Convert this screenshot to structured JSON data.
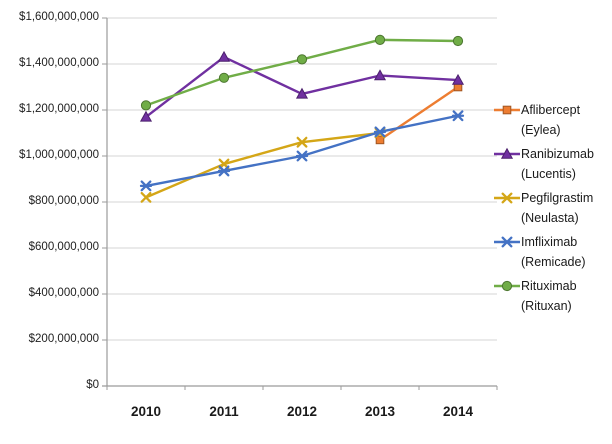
{
  "chart_data": {
    "type": "line",
    "title": "",
    "x_categories": [
      "2010",
      "2011",
      "2012",
      "2013",
      "2014"
    ],
    "y_ticks": [
      "$0",
      "$200,000,000",
      "$400,000,000",
      "$600,000,000",
      "$800,000,000",
      "$1,000,000,000",
      "$1,200,000,000",
      "$1,400,000,000",
      "$1,600,000,000"
    ],
    "ylim": [
      0,
      1600000000
    ],
    "y_tick_step": 200000000,
    "grid": true,
    "legend_position": "right",
    "axis_color": "#9b9b9b",
    "gridline_color": "#d6d6d6",
    "series": [
      {
        "name": "Aflibercept (Eylea)",
        "legend_lines": [
          "Aflibercept",
          "(Eylea)"
        ],
        "color": "#ED7D31",
        "marker": "square",
        "values": [
          null,
          null,
          null,
          1070000000,
          1300000000
        ]
      },
      {
        "name": "Ranibizumab (Lucentis)",
        "legend_lines": [
          "Ranibizumab",
          "(Lucentis)"
        ],
        "color": "#7030A0",
        "marker": "triangle",
        "values": [
          1170000000,
          1430000000,
          1270000000,
          1350000000,
          1330000000
        ]
      },
      {
        "name": "Pegfilgrastim (Neulasta)",
        "legend_lines": [
          "Pegfilgrastim",
          "(Neulasta)"
        ],
        "color": "#D4A617",
        "marker": "x",
        "values": [
          820000000,
          965000000,
          1060000000,
          1100000000,
          null
        ]
      },
      {
        "name": "Imfliximab (Remicade)",
        "legend_lines": [
          "Imfliximab",
          "(Remicade)"
        ],
        "color": "#4472C4",
        "marker": "star",
        "values": [
          870000000,
          935000000,
          1000000000,
          1105000000,
          1175000000
        ]
      },
      {
        "name": "Rituximab (Rituxan)",
        "legend_lines": [
          "Rituximab",
          "(Rituxan)"
        ],
        "color": "#70AD47",
        "marker": "circle",
        "values": [
          1220000000,
          1340000000,
          1420000000,
          1505000000,
          1500000000
        ]
      }
    ]
  }
}
